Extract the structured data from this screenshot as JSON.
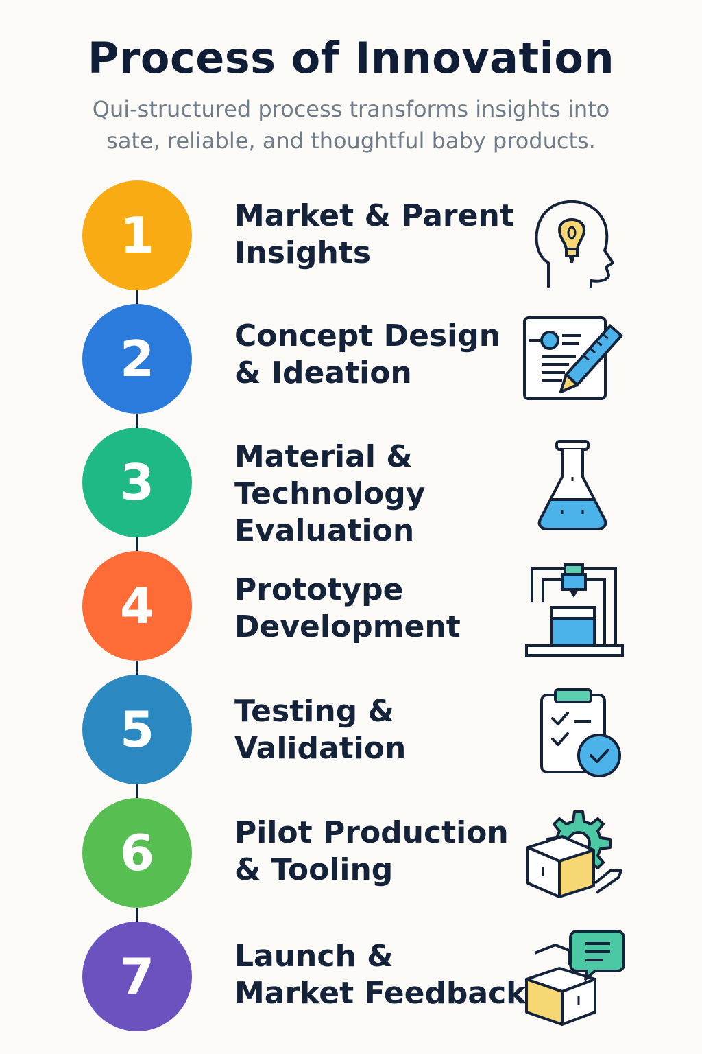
{
  "title": "Process of Innovation",
  "subtitle": {
    "line1": "Qui-structured process transforms insights into",
    "line2": "sate, reliable, and thoughtful baby products."
  },
  "steps": [
    {
      "number": "1",
      "label_lines": [
        "Market & Parent",
        "Insights"
      ],
      "color": "#f8ab12",
      "icon": "idea-head-icon"
    },
    {
      "number": "2",
      "label_lines": [
        "Concept Design",
        "& Ideation"
      ],
      "color": "#2b7bdd",
      "icon": "design-document-icon"
    },
    {
      "number": "3",
      "label_lines": [
        "Material &",
        "Technology",
        "Evaluation"
      ],
      "color": "#1eb985",
      "icon": "lab-flask-icon"
    },
    {
      "number": "4",
      "label_lines": [
        "Prototype",
        "Development"
      ],
      "color": "#fd6b37",
      "icon": "3d-printer-icon"
    },
    {
      "number": "5",
      "label_lines": [
        "Testing &",
        "Validation"
      ],
      "color": "#2b88c0",
      "icon": "checklist-clipboard-icon"
    },
    {
      "number": "6",
      "label_lines": [
        "Pilot Production",
        "& Tooling"
      ],
      "color": "#57bf52",
      "icon": "box-gear-icon"
    },
    {
      "number": "7",
      "label_lines": [
        "Launch &",
        "Market Feedback"
      ],
      "color": "#6c52bf",
      "icon": "box-feedback-icon"
    }
  ],
  "icon_colors": {
    "stroke": "#15233a",
    "blue": "#4bb3ea",
    "yellow": "#f7d774",
    "teal": "#4cc9a4",
    "teal_light": "#5ccfb0"
  }
}
